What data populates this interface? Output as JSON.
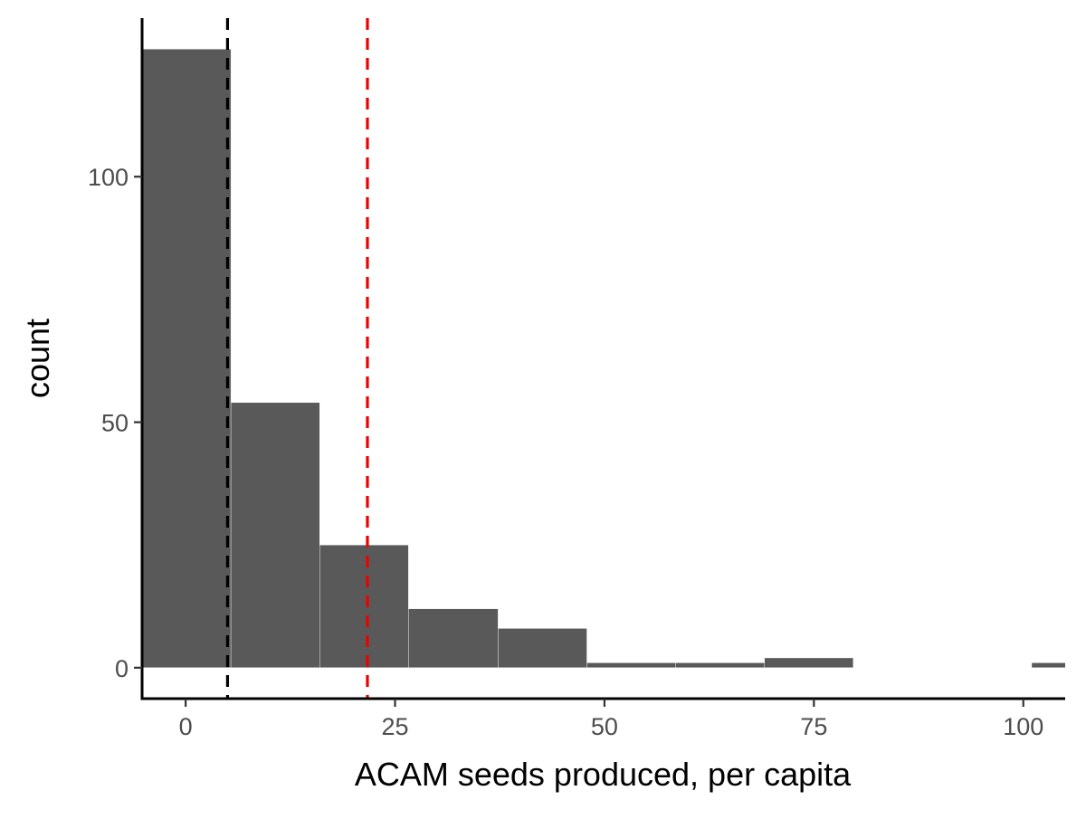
{
  "chart_data": {
    "type": "bar",
    "subtype": "histogram",
    "title": "",
    "xlabel": "ACAM seeds produced, per capita",
    "ylabel": "count",
    "xlim": [
      -5.2,
      105
    ],
    "ylim": [
      -6.3,
      132.3
    ],
    "x_ticks": [
      0,
      25,
      50,
      75,
      100
    ],
    "x_tick_labels": [
      "0",
      "25",
      "50",
      "75",
      "100"
    ],
    "y_ticks": [
      0,
      50,
      100
    ],
    "y_tick_labels": [
      "0",
      "50",
      "100"
    ],
    "bins": [
      {
        "x0": -5.2,
        "x1": 5.4,
        "count": 126
      },
      {
        "x0": 5.4,
        "x1": 16.0,
        "count": 54
      },
      {
        "x0": 16.0,
        "x1": 26.6,
        "count": 25
      },
      {
        "x0": 26.6,
        "x1": 37.3,
        "count": 12
      },
      {
        "x0": 37.3,
        "x1": 47.9,
        "count": 8
      },
      {
        "x0": 47.9,
        "x1": 58.5,
        "count": 1
      },
      {
        "x0": 58.5,
        "x1": 69.1,
        "count": 1
      },
      {
        "x0": 69.1,
        "x1": 79.7,
        "count": 2
      },
      {
        "x0": 79.7,
        "x1": 90.3,
        "count": 0
      },
      {
        "x0": 90.3,
        "x1": 101.0,
        "count": 0
      },
      {
        "x0": 101.0,
        "x1": 111.6,
        "count": 1
      }
    ],
    "bar_color": "#595959",
    "vlines": [
      {
        "x": 5.0,
        "color": "#000000",
        "linetype": "dashed"
      },
      {
        "x": 21.7,
        "color": "#ee0000",
        "linetype": "dashed"
      }
    ],
    "grid": false,
    "theme": "classic"
  }
}
